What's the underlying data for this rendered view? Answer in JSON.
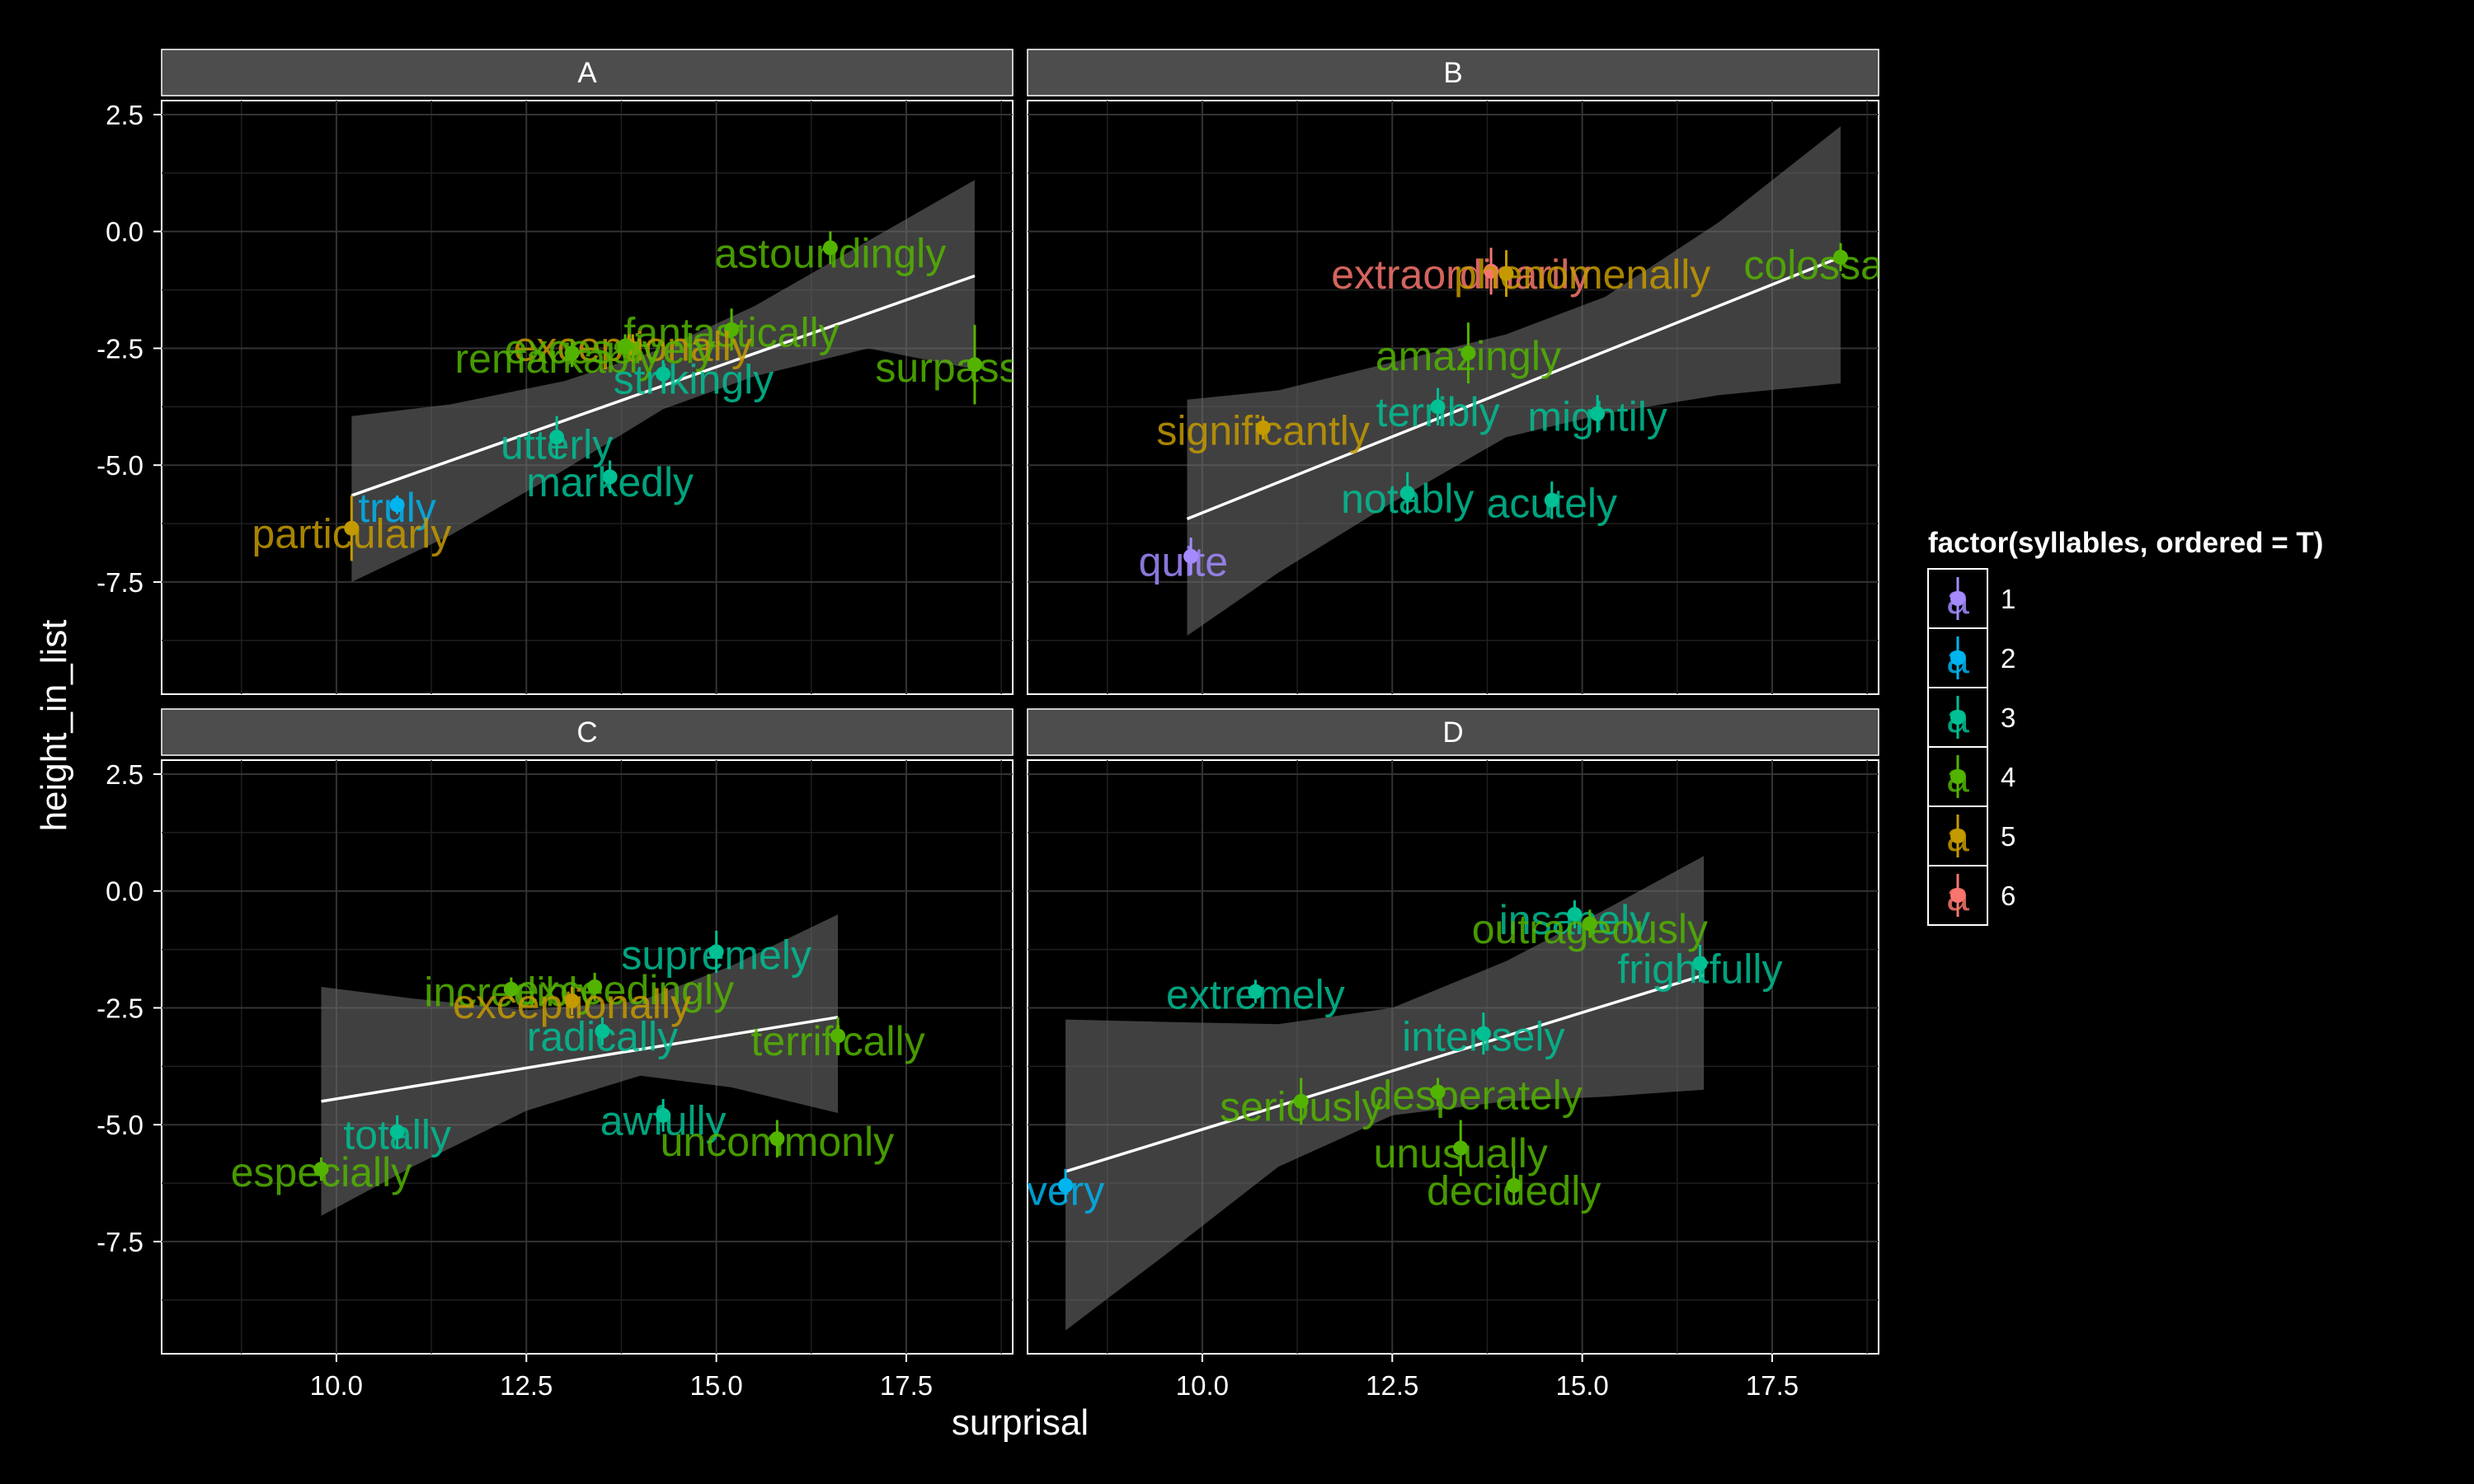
{
  "chart_data": {
    "type": "scatter",
    "x_label": "surprisal",
    "y_label": "height_in_list",
    "x_ticks": [
      10.0,
      12.5,
      15.0,
      17.5
    ],
    "x_tick_labels": [
      "10.0",
      "12.5",
      "15.0",
      "17.5"
    ],
    "y_ticks": [
      2.5,
      0.0,
      -2.5,
      -5.0,
      -7.5
    ],
    "y_tick_labels": [
      "2.5",
      "0.0",
      "-2.5",
      "-5.0",
      "-7.5"
    ],
    "xlim": [
      7.7,
      18.9
    ],
    "ylim": [
      -9.9,
      2.8
    ],
    "legend": {
      "title": "factor(syllables, ordered = T)",
      "key_glyph": "a",
      "placement": "right",
      "items": [
        {
          "label": "1",
          "color": "#A58AFF"
        },
        {
          "label": "2",
          "color": "#00B4F0"
        },
        {
          "label": "3",
          "color": "#00C094"
        },
        {
          "label": "4",
          "color": "#53B400"
        },
        {
          "label": "5",
          "color": "#C49A00"
        },
        {
          "label": "6",
          "color": "#F8766D"
        }
      ]
    },
    "panels": [
      {
        "title": "A",
        "fit": {
          "x": [
            10.2,
            18.4
          ],
          "y": [
            -5.65,
            -0.95
          ]
        },
        "ribbon": {
          "x": [
            10.2,
            11.5,
            13.0,
            14.3,
            15.5,
            17.0,
            18.4
          ],
          "upper": [
            -3.95,
            -3.7,
            -3.2,
            -2.5,
            -1.6,
            -0.2,
            1.1
          ],
          "lower": [
            -7.5,
            -6.5,
            -5.1,
            -3.8,
            -3.1,
            -2.5,
            -2.95
          ]
        },
        "points": [
          {
            "word": "astoundingly",
            "x": 16.5,
            "y": -0.35,
            "err": 0.35,
            "syl": 4,
            "lx": 16.5,
            "ly": -0.45
          },
          {
            "word": "fantastically",
            "x": 15.2,
            "y": -2.1,
            "err": 0.45,
            "syl": 4,
            "lx": 15.2,
            "ly": -2.15
          },
          {
            "word": "exceptionally",
            "x": 13.9,
            "y": -2.5,
            "err": 0.3,
            "syl": 5,
            "lx": 13.9,
            "ly": -2.45
          },
          {
            "word": "excessively",
            "x": 13.8,
            "y": -2.45,
            "err": 0.25,
            "syl": 4,
            "lx": 13.6,
            "ly": -2.5
          },
          {
            "word": "remarkably",
            "x": 13.1,
            "y": -2.6,
            "err": 0.3,
            "syl": 4,
            "lx": 12.9,
            "ly": -2.7
          },
          {
            "word": "strikingly",
            "x": 14.3,
            "y": -3.05,
            "err": 0.3,
            "syl": 3,
            "lx": 14.7,
            "ly": -3.15
          },
          {
            "word": "surpassingly",
            "x": 18.4,
            "y": -2.85,
            "err": 0.85,
            "syl": 4,
            "lx": 18.6,
            "ly": -2.9
          },
          {
            "word": "utterly",
            "x": 12.9,
            "y": -4.4,
            "err": 0.45,
            "syl": 3,
            "lx": 12.9,
            "ly": -4.55
          },
          {
            "word": "markedly",
            "x": 13.6,
            "y": -5.25,
            "err": 0.35,
            "syl": 3,
            "lx": 13.6,
            "ly": -5.35
          },
          {
            "word": "truly",
            "x": 10.8,
            "y": -5.85,
            "err": 0.2,
            "syl": 2,
            "lx": 10.8,
            "ly": -5.9
          },
          {
            "word": "particularly",
            "x": 10.2,
            "y": -6.35,
            "err": 0.7,
            "syl": 5,
            "lx": 10.2,
            "ly": -6.45
          }
        ]
      },
      {
        "title": "B",
        "fit": {
          "x": [
            9.8,
            18.4
          ],
          "y": [
            -6.15,
            -0.55
          ]
        },
        "ribbon": {
          "x": [
            9.8,
            11.0,
            12.5,
            14.0,
            15.3,
            16.8,
            18.4
          ],
          "upper": [
            -3.6,
            -3.4,
            -2.8,
            -2.2,
            -1.4,
            0.2,
            2.25
          ],
          "lower": [
            -8.65,
            -7.3,
            -5.8,
            -4.4,
            -3.9,
            -3.5,
            -3.25
          ]
        },
        "points": [
          {
            "word": "extraordinarily",
            "x": 13.8,
            "y": -0.85,
            "err": 0.5,
            "syl": 6,
            "lx": 13.4,
            "ly": -0.9
          },
          {
            "word": "phenomenally",
            "x": 14.0,
            "y": -0.9,
            "err": 0.5,
            "syl": 5,
            "lx": 15.0,
            "ly": -0.9
          },
          {
            "word": "colossally",
            "x": 18.4,
            "y": -0.55,
            "err": 0.3,
            "syl": 4,
            "lx": 18.3,
            "ly": -0.7
          },
          {
            "word": "amazingly",
            "x": 13.5,
            "y": -2.6,
            "err": 0.65,
            "syl": 4,
            "lx": 13.5,
            "ly": -2.65
          },
          {
            "word": "terribly",
            "x": 13.1,
            "y": -3.75,
            "err": 0.4,
            "syl": 3,
            "lx": 13.1,
            "ly": -3.85
          },
          {
            "word": "mightily",
            "x": 15.2,
            "y": -3.9,
            "err": 0.4,
            "syl": 3,
            "lx": 15.2,
            "ly": -3.95
          },
          {
            "word": "significantly",
            "x": 10.8,
            "y": -4.2,
            "err": 0.25,
            "syl": 5,
            "lx": 10.8,
            "ly": -4.25
          },
          {
            "word": "notably",
            "x": 12.7,
            "y": -5.6,
            "err": 0.45,
            "syl": 3,
            "lx": 12.7,
            "ly": -5.7
          },
          {
            "word": "acutely",
            "x": 14.6,
            "y": -5.75,
            "err": 0.4,
            "syl": 3,
            "lx": 14.6,
            "ly": -5.8
          },
          {
            "word": "quite",
            "x": 9.85,
            "y": -6.95,
            "err": 0.4,
            "syl": 1,
            "lx": 9.75,
            "ly": -7.05
          }
        ]
      },
      {
        "title": "C",
        "fit": {
          "x": [
            9.8,
            16.6
          ],
          "y": [
            -4.5,
            -2.7
          ]
        },
        "ribbon": {
          "x": [
            9.8,
            11.0,
            12.5,
            14.0,
            15.2,
            16.6
          ],
          "upper": [
            -2.05,
            -2.3,
            -2.55,
            -2.35,
            -1.6,
            -0.5
          ],
          "lower": [
            -6.95,
            -5.9,
            -4.7,
            -3.95,
            -4.2,
            -4.75
          ]
        },
        "points": [
          {
            "word": "supremely",
            "x": 15.0,
            "y": -1.3,
            "err": 0.45,
            "syl": 3,
            "lx": 15.0,
            "ly": -1.35
          },
          {
            "word": "incredibly",
            "x": 12.3,
            "y": -2.1,
            "err": 0.25,
            "syl": 4,
            "lx": 12.3,
            "ly": -2.15
          },
          {
            "word": "exceedingly",
            "x": 13.4,
            "y": -2.05,
            "err": 0.3,
            "syl": 4,
            "lx": 13.8,
            "ly": -2.1
          },
          {
            "word": "exceptionally",
            "x": 13.1,
            "y": -2.35,
            "err": 0.3,
            "syl": 5,
            "lx": 13.1,
            "ly": -2.4
          },
          {
            "word": "radically",
            "x": 13.5,
            "y": -3.0,
            "err": 0.3,
            "syl": 3,
            "lx": 13.5,
            "ly": -3.1
          },
          {
            "word": "terrifically",
            "x": 16.6,
            "y": -3.1,
            "err": 0.4,
            "syl": 4,
            "lx": 16.6,
            "ly": -3.2
          },
          {
            "word": "awfully",
            "x": 14.3,
            "y": -4.8,
            "err": 0.35,
            "syl": 3,
            "lx": 14.3,
            "ly": -4.9
          },
          {
            "word": "uncommonly",
            "x": 15.8,
            "y": -5.3,
            "err": 0.4,
            "syl": 4,
            "lx": 15.8,
            "ly": -5.35
          },
          {
            "word": "totally",
            "x": 10.8,
            "y": -5.15,
            "err": 0.35,
            "syl": 3,
            "lx": 10.8,
            "ly": -5.2
          },
          {
            "word": "especially",
            "x": 9.8,
            "y": -5.95,
            "err": 0.25,
            "syl": 4,
            "lx": 9.8,
            "ly": -6.0
          }
        ]
      },
      {
        "title": "D",
        "fit": {
          "x": [
            8.2,
            16.6
          ],
          "y": [
            -6.0,
            -1.8
          ]
        },
        "ribbon": {
          "x": [
            8.2,
            9.5,
            11.0,
            12.5,
            14.0,
            15.3,
            16.6
          ],
          "upper": [
            -2.75,
            -2.8,
            -2.85,
            -2.5,
            -1.5,
            -0.4,
            0.75
          ],
          "lower": [
            -9.4,
            -7.8,
            -5.9,
            -4.8,
            -4.5,
            -4.4,
            -4.25
          ]
        },
        "points": [
          {
            "word": "insanely",
            "x": 14.9,
            "y": -0.5,
            "err": 0.3,
            "syl": 3,
            "lx": 14.9,
            "ly": -0.6
          },
          {
            "word": "outrageously",
            "x": 15.1,
            "y": -0.7,
            "err": 0.3,
            "syl": 4,
            "lx": 15.1,
            "ly": -0.8
          },
          {
            "word": "frightfully",
            "x": 16.55,
            "y": -1.55,
            "err": 0.4,
            "syl": 3,
            "lx": 16.55,
            "ly": -1.65
          },
          {
            "word": "extremely",
            "x": 10.7,
            "y": -2.15,
            "err": 0.25,
            "syl": 3,
            "lx": 10.7,
            "ly": -2.2
          },
          {
            "word": "intensely",
            "x": 13.7,
            "y": -3.05,
            "err": 0.45,
            "syl": 3,
            "lx": 13.7,
            "ly": -3.1
          },
          {
            "word": "desperately",
            "x": 13.1,
            "y": -4.3,
            "err": 0.3,
            "syl": 4,
            "lx": 13.6,
            "ly": -4.35
          },
          {
            "word": "seriously",
            "x": 11.3,
            "y": -4.5,
            "err": 0.5,
            "syl": 4,
            "lx": 11.3,
            "ly": -4.6
          },
          {
            "word": "unusually",
            "x": 13.4,
            "y": -5.5,
            "err": 0.6,
            "syl": 4,
            "lx": 13.4,
            "ly": -5.6
          },
          {
            "word": "decidedly",
            "x": 14.1,
            "y": -6.3,
            "err": 0.4,
            "syl": 4,
            "lx": 14.1,
            "ly": -6.4
          },
          {
            "word": "very",
            "x": 8.2,
            "y": -6.3,
            "err": 0.35,
            "syl": 2,
            "lx": 8.2,
            "ly": -6.4
          }
        ]
      }
    ]
  }
}
